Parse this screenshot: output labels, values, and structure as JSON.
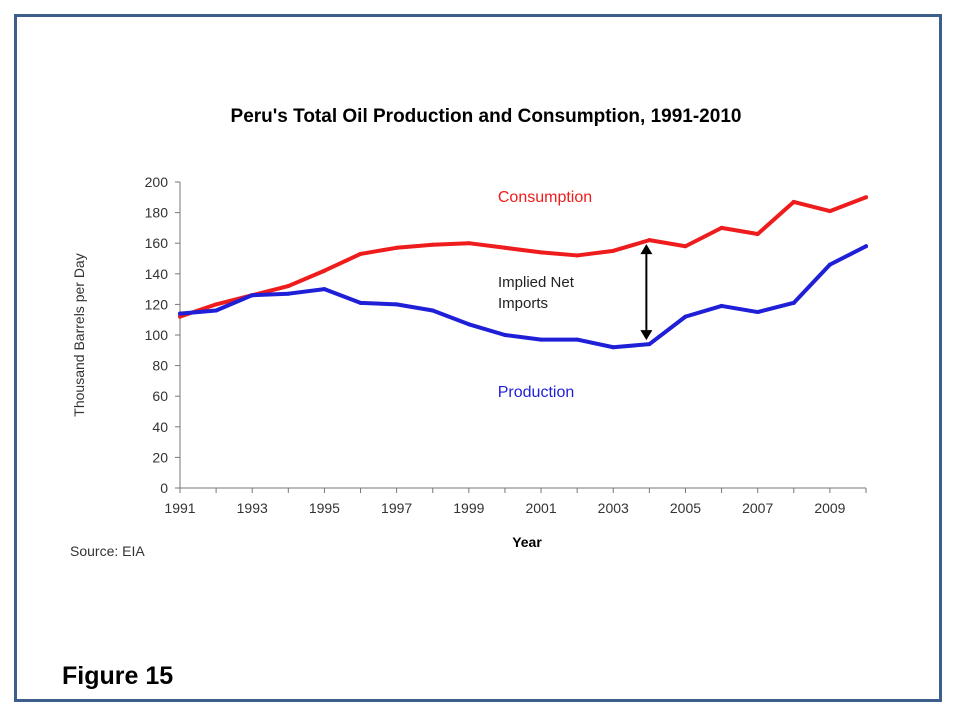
{
  "figure_label": "Figure 15",
  "source": "Source: EIA",
  "chart_data": {
    "type": "line",
    "title": "Peru's Total Oil Production and Consumption, 1991-2010",
    "xlabel": "Year",
    "ylabel": "Thousand Barrels per Day",
    "x": [
      1991,
      1992,
      1993,
      1994,
      1995,
      1996,
      1997,
      1998,
      1999,
      2000,
      2001,
      2002,
      2003,
      2004,
      2005,
      2006,
      2007,
      2008,
      2009,
      2010
    ],
    "xticks": [
      "1991",
      "1993",
      "1995",
      "1997",
      "1999",
      "2001",
      "2003",
      "2005",
      "2007",
      "2009"
    ],
    "yticks": [
      "0",
      "20",
      "40",
      "60",
      "80",
      "100",
      "120",
      "140",
      "160",
      "180",
      "200"
    ],
    "xlim": [
      1991,
      2010
    ],
    "ylim": [
      0,
      200
    ],
    "grid": false,
    "series": [
      {
        "name": "Consumption",
        "color": "#ee1c1c",
        "values": [
          112,
          120,
          126,
          132,
          142,
          153,
          157,
          159,
          160,
          157,
          154,
          152,
          155,
          162,
          158,
          170,
          166,
          187,
          181,
          190
        ]
      },
      {
        "name": "Production",
        "color": "#1f1fd8",
        "values": [
          114,
          116,
          126,
          127,
          130,
          121,
          120,
          116,
          107,
          100,
          97,
          97,
          92,
          94,
          112,
          119,
          115,
          121,
          146,
          158
        ]
      }
    ],
    "annotations": [
      {
        "text_lines": [
          "Implied Net",
          "Imports"
        ],
        "arrow_x": 2004,
        "arrow_from": 94,
        "arrow_to": 162
      }
    ]
  }
}
